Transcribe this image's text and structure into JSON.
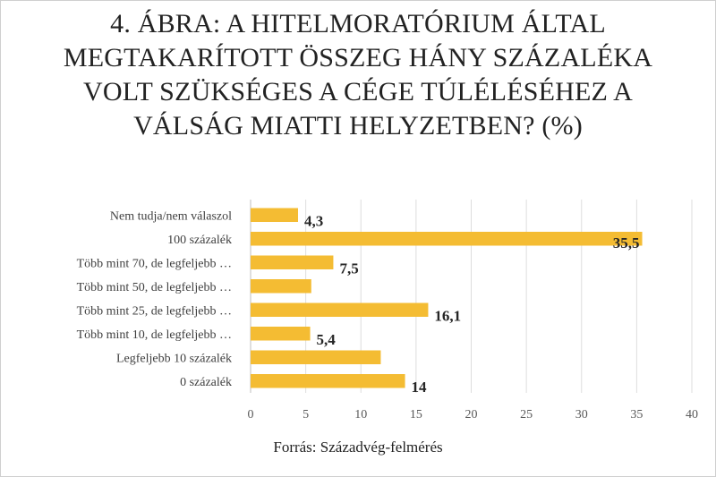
{
  "chart_data": {
    "type": "bar",
    "orientation": "horizontal",
    "title": "4. ÁBRA: A HITELMORATÓRIUM ÁLTAL MEGTAKARÍTOTT ÖSSZEG HÁNY SZÁZALÉKA VOLT SZÜKSÉGES A CÉGE TÚLÉLÉSÉHEZ A VÁLSÁG MIATTI HELYZETBEN? (%)",
    "categories": [
      "Nem tudja/nem válaszol",
      "100 százalék",
      "Több mint 70, de legfeljebb …",
      "Több mint 50, de legfeljebb …",
      "Több mint 25, de legfeljebb …",
      "Több mint 10, de legfeljebb …",
      "Legfeljebb 10 százalék",
      "0 százalék"
    ],
    "values": [
      4.3,
      35.5,
      7.5,
      5.5,
      16.1,
      5.4,
      11.8,
      14
    ],
    "data_labels": [
      "4,3",
      "35,5",
      "7,5",
      "",
      "16,1",
      "5,4",
      "",
      "14"
    ],
    "xlim": [
      0,
      40
    ],
    "xticks": [
      0,
      5,
      10,
      15,
      20,
      25,
      30,
      35,
      40
    ],
    "grid": true,
    "bar_color": "#F4BC33",
    "source": "Forrás: Századvég-felmérés"
  }
}
